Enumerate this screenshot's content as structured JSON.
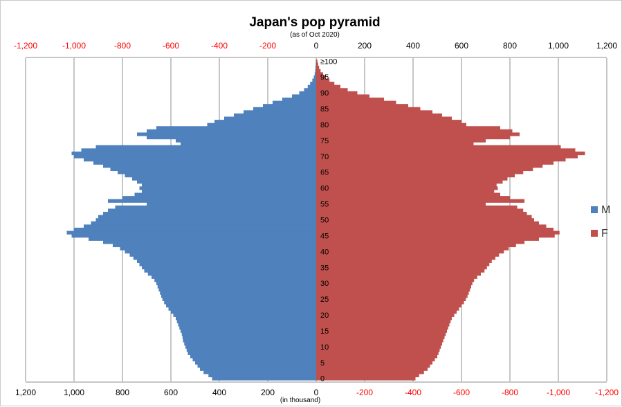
{
  "chart_data": {
    "type": "bar",
    "orientation": "horizontal",
    "title": "Japan's pop pyramid",
    "subtitle": "(as of Oct 2020)",
    "unit_label": "(in thousand)",
    "top_axis_ticks": [
      "-1,200",
      "-1,000",
      "-800",
      "-600",
      "-400",
      "-200",
      "0",
      "200",
      "400",
      "600",
      "800",
      "1,000",
      "1,200"
    ],
    "bottom_axis_ticks": [
      "1,200",
      "1,000",
      "800",
      "600",
      "400",
      "200",
      "0",
      "-200",
      "-400",
      "-600",
      "-800",
      "-1,000",
      "-1,200"
    ],
    "xlim": [
      -1200,
      1200
    ],
    "age_ticks": [
      "0",
      "5",
      "10",
      "15",
      "20",
      "25",
      "30",
      "35",
      "40",
      "45",
      "50",
      "55",
      "60",
      "65",
      "70",
      "75",
      "80",
      "85",
      "90",
      "95",
      "≥100"
    ],
    "ages": [
      0,
      1,
      2,
      3,
      4,
      5,
      6,
      7,
      8,
      9,
      10,
      11,
      12,
      13,
      14,
      15,
      16,
      17,
      18,
      19,
      20,
      21,
      22,
      23,
      24,
      25,
      26,
      27,
      28,
      29,
      30,
      31,
      32,
      33,
      34,
      35,
      36,
      37,
      38,
      39,
      40,
      41,
      42,
      43,
      44,
      45,
      46,
      47,
      48,
      49,
      50,
      51,
      52,
      53,
      54,
      55,
      56,
      57,
      58,
      59,
      60,
      61,
      62,
      63,
      64,
      65,
      66,
      67,
      68,
      69,
      70,
      71,
      72,
      73,
      74,
      75,
      76,
      77,
      78,
      79,
      80,
      81,
      82,
      83,
      84,
      85,
      86,
      87,
      88,
      89,
      90,
      91,
      92,
      93,
      94,
      95,
      96,
      97,
      98,
      99,
      100
    ],
    "series": [
      {
        "name": "M",
        "color": "#4f81bd",
        "values": [
          430,
          445,
          465,
          480,
          490,
          500,
          510,
          520,
          530,
          535,
          540,
          545,
          550,
          552,
          555,
          560,
          565,
          570,
          575,
          580,
          590,
          600,
          610,
          620,
          628,
          635,
          640,
          645,
          650,
          655,
          660,
          668,
          680,
          695,
          710,
          720,
          730,
          740,
          755,
          770,
          790,
          810,
          840,
          880,
          940,
          1010,
          1030,
          1000,
          960,
          930,
          910,
          900,
          880,
          860,
          830,
          700,
          860,
          800,
          750,
          720,
          730,
          720,
          740,
          760,
          790,
          820,
          850,
          880,
          920,
          960,
          1000,
          1010,
          970,
          910,
          560,
          580,
          700,
          740,
          700,
          660,
          450,
          420,
          380,
          340,
          300,
          260,
          220,
          180,
          140,
          100,
          70,
          50,
          35,
          25,
          16,
          10,
          6,
          4,
          3,
          2,
          1
        ]
      },
      {
        "name": "F",
        "color": "#c0504d",
        "values": [
          410,
          425,
          445,
          460,
          470,
          480,
          490,
          500,
          505,
          510,
          515,
          520,
          525,
          530,
          535,
          540,
          545,
          550,
          555,
          560,
          570,
          580,
          590,
          600,
          610,
          618,
          625,
          630,
          635,
          640,
          645,
          652,
          665,
          680,
          695,
          705,
          715,
          725,
          740,
          755,
          775,
          795,
          825,
          860,
          920,
          985,
          1005,
          980,
          950,
          920,
          900,
          890,
          870,
          855,
          830,
          700,
          860,
          800,
          760,
          735,
          750,
          745,
          770,
          790,
          820,
          855,
          895,
          935,
          980,
          1030,
          1080,
          1110,
          1070,
          1010,
          650,
          700,
          800,
          840,
          810,
          760,
          620,
          600,
          560,
          520,
          480,
          430,
          380,
          330,
          280,
          220,
          170,
          130,
          100,
          75,
          55,
          40,
          28,
          18,
          12,
          8,
          5
        ]
      }
    ],
    "legend": {
      "position": "right",
      "entries": [
        "M",
        "F"
      ]
    },
    "grid": true
  }
}
